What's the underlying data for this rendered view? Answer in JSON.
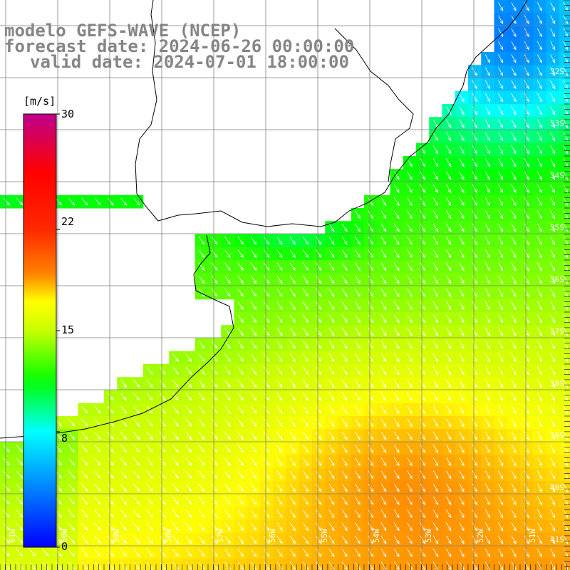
{
  "title": {
    "line1": "modelo GEFS-WAVE (NCEP)",
    "line2": "forecast date: 2024-06-26 00:00:00",
    "line3": "valid date: 2024-07-01 18:00:00"
  },
  "colorbar": {
    "unit": "[m/s]",
    "ticks": [
      {
        "label": "30",
        "value": 30
      },
      {
        "label": "22",
        "value": 22
      },
      {
        "label": "15",
        "value": 15
      },
      {
        "label": "8",
        "value": 8
      },
      {
        "label": "0",
        "value": 0
      }
    ]
  },
  "lat_labels": [
    "32S",
    "33S",
    "34S",
    "35S",
    "36S",
    "37S",
    "38S",
    "39S",
    "40S",
    "41S"
  ],
  "lon_labels": [
    "61W",
    "60W",
    "59W",
    "58W",
    "57W",
    "56W",
    "55W",
    "54W",
    "53W",
    "52W",
    "51W"
  ],
  "colors": {
    "land": "#ffffff",
    "coast": "#000000",
    "grid": "#7f7f7f",
    "arrow": "#ffffff",
    "title": "#858585"
  }
}
